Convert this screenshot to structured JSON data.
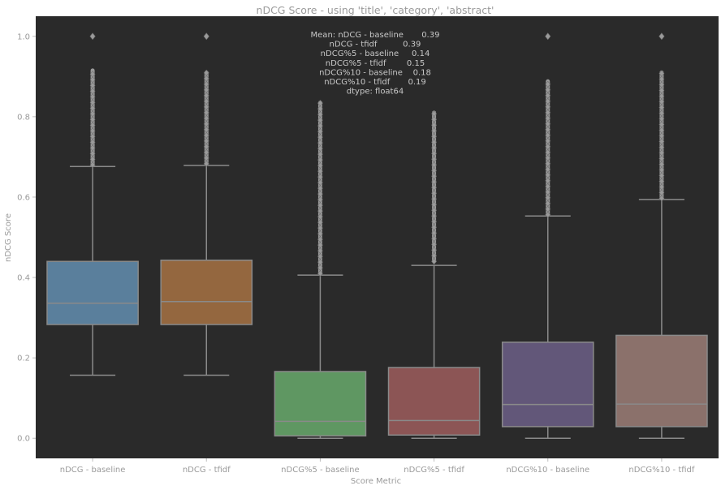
{
  "chart_data": {
    "type": "box",
    "title": "nDCG Score - using 'title', 'category', 'abstract'",
    "xlabel": "Score Metric",
    "ylabel": "nDCG Score",
    "ylim": [
      -0.05,
      1.05
    ],
    "yticks": [
      0.0,
      0.2,
      0.4,
      0.6,
      0.8,
      1.0
    ],
    "ytick_labels": [
      "0.0",
      "0.2",
      "0.4",
      "0.6",
      "0.8",
      "1.0"
    ],
    "grid": false,
    "background": "#2a2a2a",
    "categories": [
      "nDCG - baseline",
      "nDCG - tfidf",
      "nDCG%5 - baseline",
      "nDCG%5 - tfidf",
      "nDCG%10 - baseline",
      "nDCG%10 - tfidf"
    ],
    "colors": [
      "#5a7f9c",
      "#94673f",
      "#5f9762",
      "#8c5555",
      "#625779",
      "#8b716b"
    ],
    "boxes": [
      {
        "whislo": 0.157,
        "q1": 0.283,
        "med": 0.336,
        "q3": 0.44,
        "whishi": 0.676,
        "outlier_min": 0.68,
        "outlier_max": 0.915,
        "outlier_top": 1.0
      },
      {
        "whislo": 0.157,
        "q1": 0.283,
        "med": 0.34,
        "q3": 0.443,
        "whishi": 0.679,
        "outlier_min": 0.683,
        "outlier_max": 0.91,
        "outlier_top": 1.0
      },
      {
        "whislo": 0.0,
        "q1": 0.006,
        "med": 0.042,
        "q3": 0.166,
        "whishi": 0.406,
        "outlier_min": 0.41,
        "outlier_max": 0.835,
        "outlier_top": null
      },
      {
        "whislo": 0.0,
        "q1": 0.008,
        "med": 0.044,
        "q3": 0.176,
        "whishi": 0.43,
        "outlier_min": 0.44,
        "outlier_max": 0.81,
        "outlier_top": null
      },
      {
        "whislo": 0.0,
        "q1": 0.029,
        "med": 0.084,
        "q3": 0.239,
        "whishi": 0.553,
        "outlier_min": 0.556,
        "outlier_max": 0.888,
        "outlier_top": 1.0
      },
      {
        "whislo": 0.0,
        "q1": 0.029,
        "med": 0.085,
        "q3": 0.256,
        "whishi": 0.594,
        "outlier_min": 0.597,
        "outlier_max": 0.91,
        "outlier_top": 1.0
      }
    ],
    "annotation": [
      "Mean: nDCG - baseline       0.39",
      "nDCG - tfidf          0.39",
      "nDCG%5 - baseline     0.14",
      "nDCG%5 - tfidf        0.15",
      "nDCG%10 - baseline    0.18",
      "nDCG%10 - tfidf       0.19",
      "dtype: float64"
    ]
  }
}
